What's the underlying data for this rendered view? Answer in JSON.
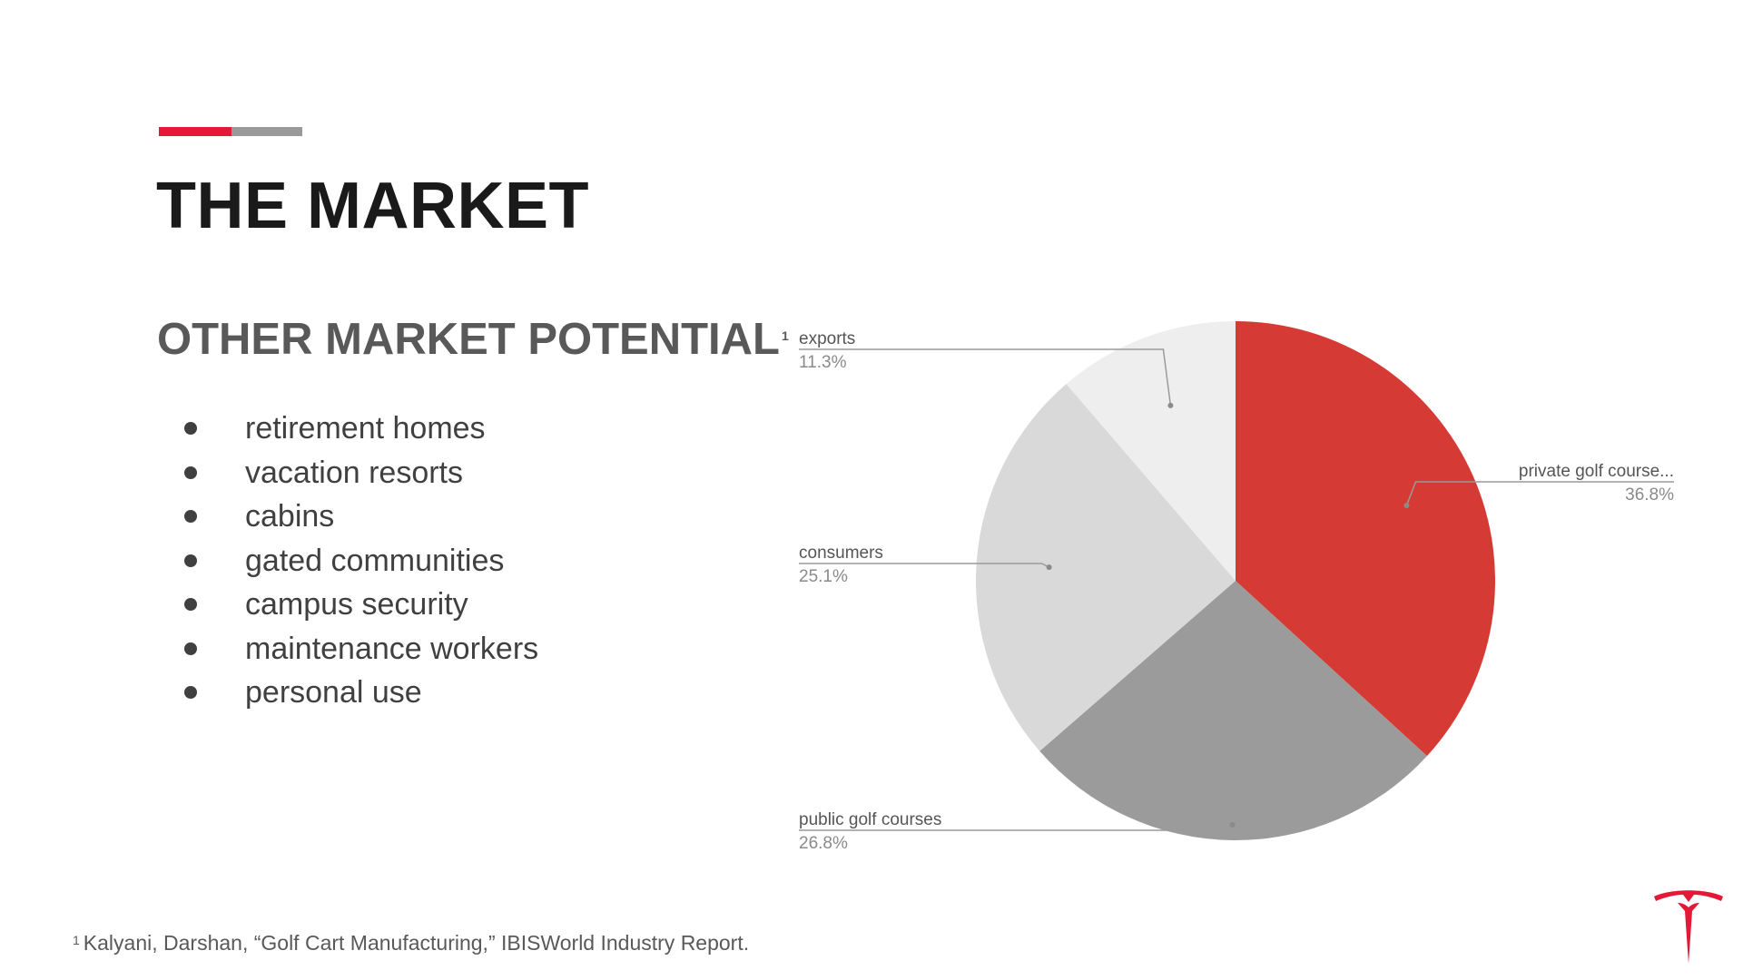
{
  "slide": {
    "title": "THE MARKET",
    "subtitle": "OTHER MARKET POTENTIAL",
    "subtitle_footnote_marker": "1",
    "bullets": [
      "retirement homes",
      "vacation resorts",
      "cabins",
      "gated communities",
      "campus security",
      "maintenance workers",
      "personal use"
    ],
    "footnote_marker": "1",
    "footnote_text": "Kalyani, Darshan, “Golf Cart Manufacturing,” IBISWorld Industry Report.",
    "logo_icon": "tesla-logo-icon"
  },
  "colors": {
    "accent_red": "#e31937",
    "accent_grey": "#999999",
    "logo_red": "#e31937"
  },
  "chart_data": {
    "type": "pie",
    "start_angle_deg": 0,
    "direction": "clockwise",
    "slices": [
      {
        "label": "private golf course...",
        "value": 36.8,
        "display": "36.8%",
        "color": "#d63a34",
        "label_side": "right"
      },
      {
        "label": "public golf courses",
        "value": 26.8,
        "display": "26.8%",
        "color": "#9b9b9b",
        "label_side": "left"
      },
      {
        "label": "consumers",
        "value": 25.1,
        "display": "25.1%",
        "color": "#d9d9d9",
        "label_side": "left"
      },
      {
        "label": "exports",
        "value": 11.3,
        "display": "11.3%",
        "color": "#eeeeee",
        "label_side": "left"
      }
    ]
  }
}
